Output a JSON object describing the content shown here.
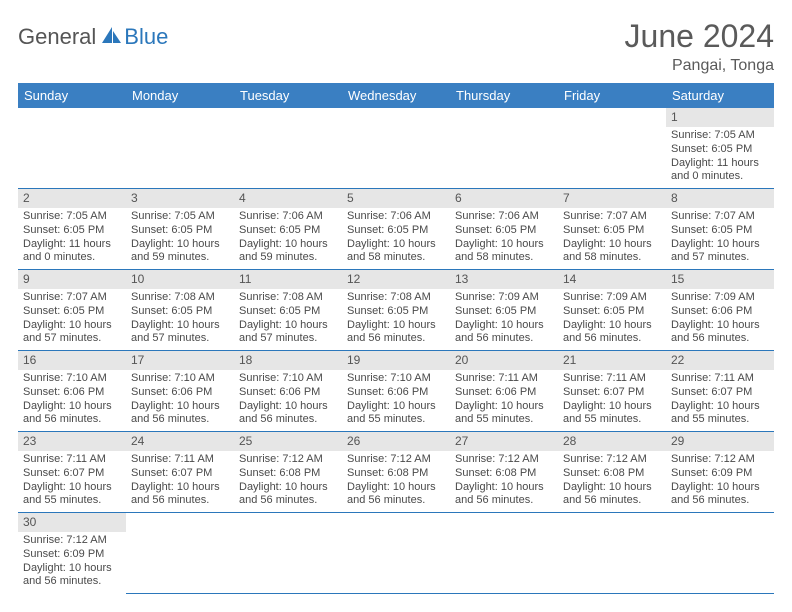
{
  "logo": {
    "text1": "General",
    "text2": "Blue"
  },
  "title": "June 2024",
  "subtitle": "Pangai, Tonga",
  "colors": {
    "header_bg": "#3a7fc2",
    "header_text": "#ffffff",
    "daynum_bg": "#e6e6e6",
    "cell_border": "#2b77bb",
    "body_text": "#4a4a4a",
    "logo_gray": "#555555",
    "logo_blue": "#2b77bb"
  },
  "weekdays": [
    "Sunday",
    "Monday",
    "Tuesday",
    "Wednesday",
    "Thursday",
    "Friday",
    "Saturday"
  ],
  "days": {
    "1": {
      "sunrise": "7:05 AM",
      "sunset": "6:05 PM",
      "daylight": "11 hours and 0 minutes."
    },
    "2": {
      "sunrise": "7:05 AM",
      "sunset": "6:05 PM",
      "daylight": "11 hours and 0 minutes."
    },
    "3": {
      "sunrise": "7:05 AM",
      "sunset": "6:05 PM",
      "daylight": "10 hours and 59 minutes."
    },
    "4": {
      "sunrise": "7:06 AM",
      "sunset": "6:05 PM",
      "daylight": "10 hours and 59 minutes."
    },
    "5": {
      "sunrise": "7:06 AM",
      "sunset": "6:05 PM",
      "daylight": "10 hours and 58 minutes."
    },
    "6": {
      "sunrise": "7:06 AM",
      "sunset": "6:05 PM",
      "daylight": "10 hours and 58 minutes."
    },
    "7": {
      "sunrise": "7:07 AM",
      "sunset": "6:05 PM",
      "daylight": "10 hours and 58 minutes."
    },
    "8": {
      "sunrise": "7:07 AM",
      "sunset": "6:05 PM",
      "daylight": "10 hours and 57 minutes."
    },
    "9": {
      "sunrise": "7:07 AM",
      "sunset": "6:05 PM",
      "daylight": "10 hours and 57 minutes."
    },
    "10": {
      "sunrise": "7:08 AM",
      "sunset": "6:05 PM",
      "daylight": "10 hours and 57 minutes."
    },
    "11": {
      "sunrise": "7:08 AM",
      "sunset": "6:05 PM",
      "daylight": "10 hours and 57 minutes."
    },
    "12": {
      "sunrise": "7:08 AM",
      "sunset": "6:05 PM",
      "daylight": "10 hours and 56 minutes."
    },
    "13": {
      "sunrise": "7:09 AM",
      "sunset": "6:05 PM",
      "daylight": "10 hours and 56 minutes."
    },
    "14": {
      "sunrise": "7:09 AM",
      "sunset": "6:05 PM",
      "daylight": "10 hours and 56 minutes."
    },
    "15": {
      "sunrise": "7:09 AM",
      "sunset": "6:06 PM",
      "daylight": "10 hours and 56 minutes."
    },
    "16": {
      "sunrise": "7:10 AM",
      "sunset": "6:06 PM",
      "daylight": "10 hours and 56 minutes."
    },
    "17": {
      "sunrise": "7:10 AM",
      "sunset": "6:06 PM",
      "daylight": "10 hours and 56 minutes."
    },
    "18": {
      "sunrise": "7:10 AM",
      "sunset": "6:06 PM",
      "daylight": "10 hours and 56 minutes."
    },
    "19": {
      "sunrise": "7:10 AM",
      "sunset": "6:06 PM",
      "daylight": "10 hours and 55 minutes."
    },
    "20": {
      "sunrise": "7:11 AM",
      "sunset": "6:06 PM",
      "daylight": "10 hours and 55 minutes."
    },
    "21": {
      "sunrise": "7:11 AM",
      "sunset": "6:07 PM",
      "daylight": "10 hours and 55 minutes."
    },
    "22": {
      "sunrise": "7:11 AM",
      "sunset": "6:07 PM",
      "daylight": "10 hours and 55 minutes."
    },
    "23": {
      "sunrise": "7:11 AM",
      "sunset": "6:07 PM",
      "daylight": "10 hours and 55 minutes."
    },
    "24": {
      "sunrise": "7:11 AM",
      "sunset": "6:07 PM",
      "daylight": "10 hours and 56 minutes."
    },
    "25": {
      "sunrise": "7:12 AM",
      "sunset": "6:08 PM",
      "daylight": "10 hours and 56 minutes."
    },
    "26": {
      "sunrise": "7:12 AM",
      "sunset": "6:08 PM",
      "daylight": "10 hours and 56 minutes."
    },
    "27": {
      "sunrise": "7:12 AM",
      "sunset": "6:08 PM",
      "daylight": "10 hours and 56 minutes."
    },
    "28": {
      "sunrise": "7:12 AM",
      "sunset": "6:08 PM",
      "daylight": "10 hours and 56 minutes."
    },
    "29": {
      "sunrise": "7:12 AM",
      "sunset": "6:09 PM",
      "daylight": "10 hours and 56 minutes."
    },
    "30": {
      "sunrise": "7:12 AM",
      "sunset": "6:09 PM",
      "daylight": "10 hours and 56 minutes."
    }
  },
  "labels": {
    "sunrise": "Sunrise:",
    "sunset": "Sunset:",
    "daylight": "Daylight:"
  },
  "layout": {
    "first_weekday_index": 6,
    "num_days": 30
  }
}
